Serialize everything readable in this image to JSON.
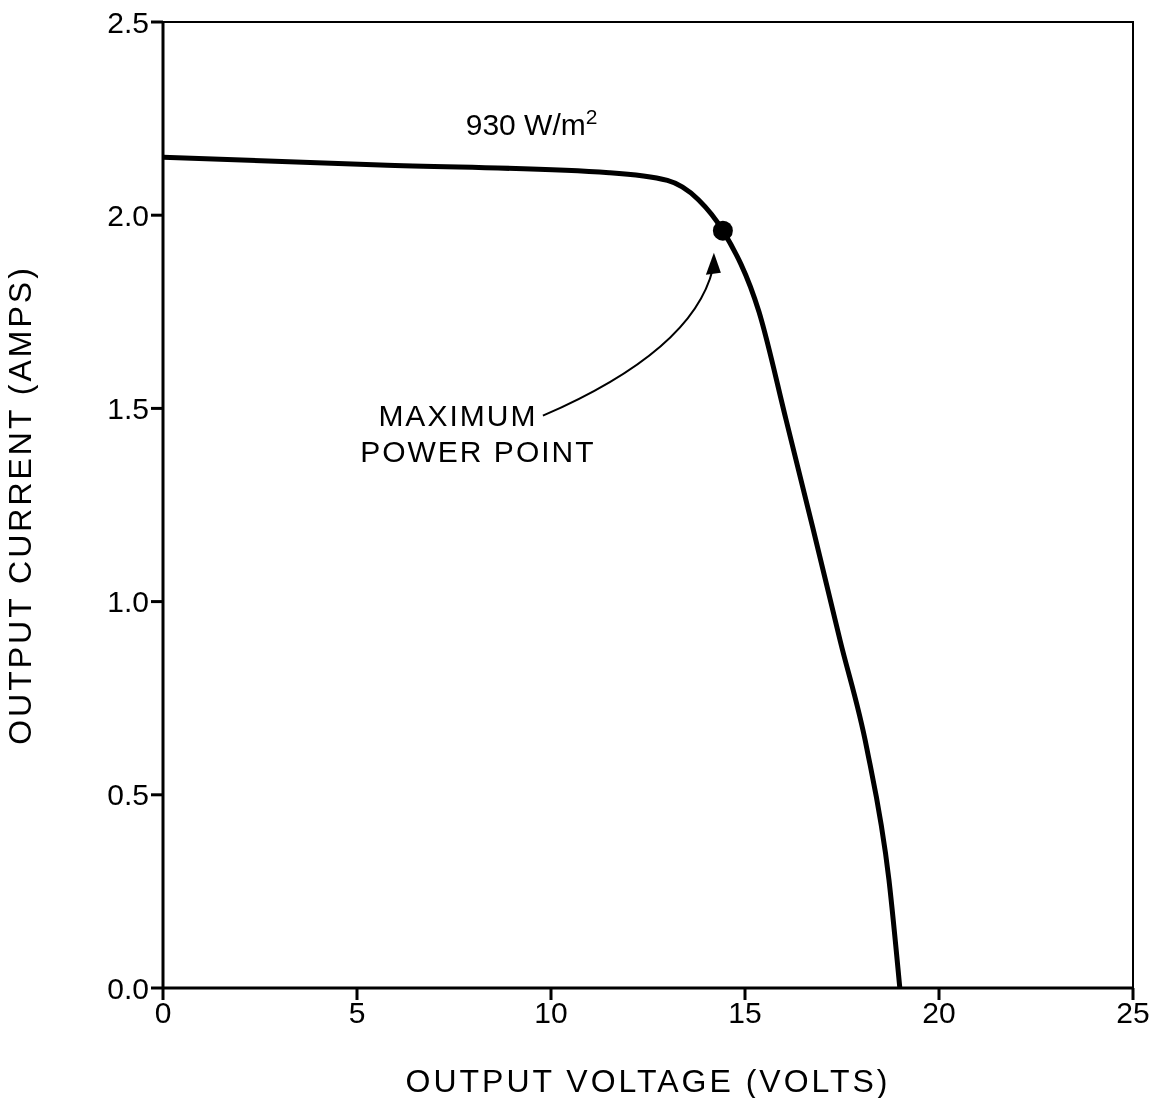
{
  "chart_data": {
    "type": "line",
    "xlabel": "OUTPUT VOLTAGE (VOLTS)",
    "ylabel": "OUTPUT CURRENT (AMPS)",
    "xlim": [
      0,
      25
    ],
    "xticks": [
      0,
      5,
      10,
      15,
      20,
      25
    ],
    "ylim": [
      0,
      2.5
    ],
    "yticks": [
      {
        "value": 0,
        "label": "0.0"
      },
      {
        "value": 0.5,
        "label": "0.5"
      },
      {
        "value": 1,
        "label": "1.0"
      },
      {
        "value": 1.5,
        "label": "1.5"
      },
      {
        "value": 2,
        "label": "2.0"
      },
      {
        "value": 2.5,
        "label": "2.5"
      }
    ],
    "grid": false,
    "legend": false,
    "marker": "none",
    "line_style": "solid",
    "series": [
      {
        "name": "930 W/m$^{2}$",
        "color": "#000000",
        "x": [
          0,
          5.6,
          11.5,
          13.0,
          13.8,
          14.43,
          15.36,
          16.06,
          16.75,
          17.45,
          18.14,
          18.71,
          18.99
        ],
        "values": [
          2.15,
          2.13,
          2.11,
          2.09,
          2.04,
          1.96,
          1.75,
          1.47,
          1.19,
          0.9,
          0.62,
          0.28,
          0
        ]
      },
      {
        "type": "scatter",
        "color": "#000000",
        "x": [
          14.43
        ],
        "values": [
          1.96
        ],
        "marker": "circle"
      }
    ],
    "annotations": [
      "MAXIMUM\nPOWER POINT"
    ]
  }
}
